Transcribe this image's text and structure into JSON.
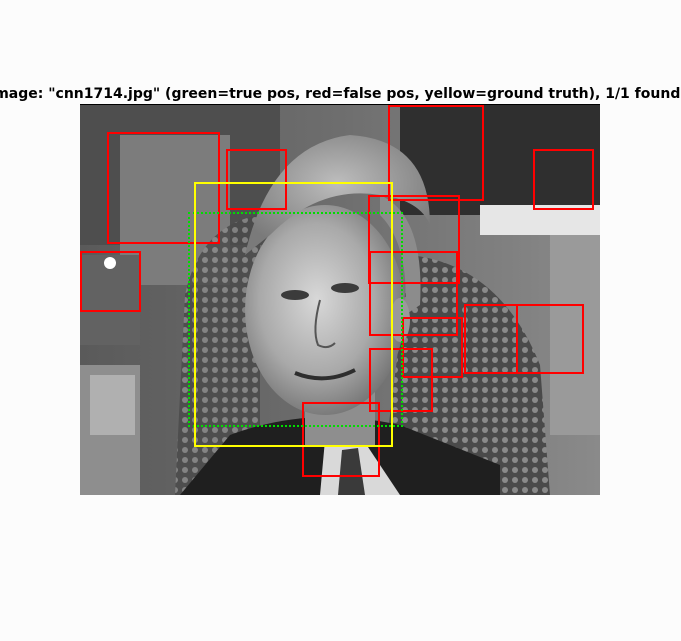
{
  "figure": {
    "title": "Image: \"cnn1714.jpg\" (green=true pos, red=false pos, yellow=ground truth), 1/1 found"
  },
  "colors": {
    "true_pos": "#00dd00",
    "false_pos": "#ff0000",
    "ground_truth": "#ffff00",
    "background": "#fcfcfc"
  },
  "image": {
    "filename": "cnn1714.jpg",
    "description_icon": "grayscale-photo-icon"
  }
}
